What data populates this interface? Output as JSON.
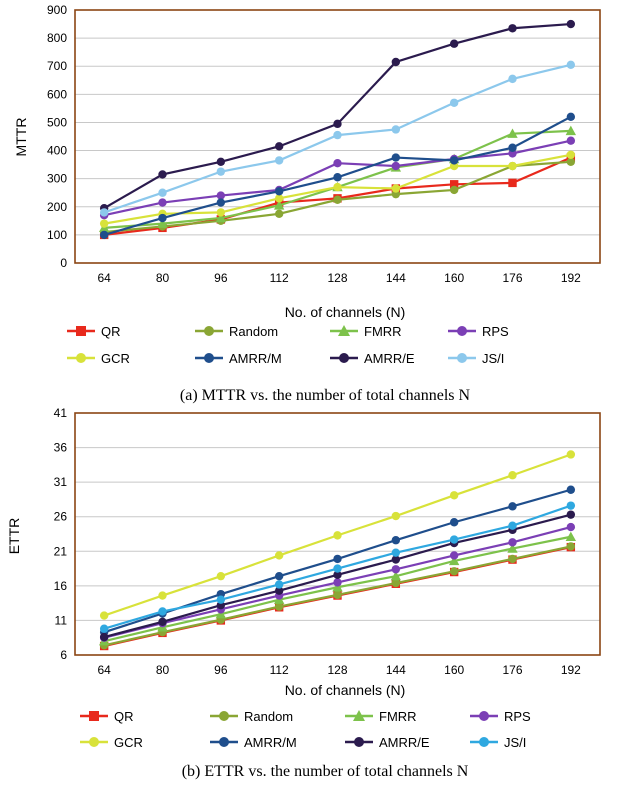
{
  "chart_data": [
    {
      "type": "line",
      "xlabel": "No. of channels (N)",
      "ylabel": "MTTR",
      "caption": "(a) MTTR vs. the number of total channels N",
      "categories": [
        "64",
        "80",
        "96",
        "112",
        "128",
        "144",
        "160",
        "176",
        "192"
      ],
      "ylim": [
        0,
        900
      ],
      "yticks": [
        0,
        100,
        200,
        300,
        400,
        500,
        600,
        700,
        800,
        900
      ],
      "series": [
        {
          "name": "QR",
          "color": "#e8291c",
          "marker": "square",
          "values": [
            100,
            125,
            155,
            215,
            230,
            265,
            280,
            285,
            375
          ]
        },
        {
          "name": "Random",
          "color": "#8aa634",
          "marker": "circle",
          "values": [
            110,
            130,
            150,
            175,
            225,
            245,
            260,
            345,
            360
          ]
        },
        {
          "name": "FMRR",
          "color": "#7dc24b",
          "marker": "triangle",
          "values": [
            125,
            140,
            160,
            205,
            270,
            340,
            370,
            460,
            470
          ]
        },
        {
          "name": "RPS",
          "color": "#7b3fb5",
          "marker": "circle",
          "values": [
            170,
            215,
            240,
            260,
            355,
            345,
            370,
            390,
            435
          ]
        },
        {
          "name": "GCR",
          "color": "#d8e23a",
          "marker": "circle",
          "values": [
            140,
            175,
            180,
            230,
            270,
            265,
            345,
            345,
            385
          ]
        },
        {
          "name": "AMRR/M",
          "color": "#1f4e8c",
          "marker": "circle",
          "values": [
            100,
            160,
            215,
            255,
            305,
            375,
            365,
            410,
            520
          ]
        },
        {
          "name": "AMRR/E",
          "color": "#2b1b4e",
          "marker": "circle",
          "values": [
            195,
            315,
            360,
            415,
            495,
            715,
            780,
            835,
            850
          ]
        },
        {
          "name": "JS/I",
          "color": "#8cc8ec",
          "marker": "circle",
          "values": [
            180,
            250,
            325,
            365,
            455,
            475,
            570,
            655,
            705
          ]
        }
      ]
    },
    {
      "type": "line",
      "xlabel": "No. of channels (N)",
      "ylabel": "ETTR",
      "caption": "(b) ETTR vs. the number of total channels N",
      "categories": [
        "64",
        "80",
        "96",
        "112",
        "128",
        "144",
        "160",
        "176",
        "192"
      ],
      "ylim": [
        6,
        41
      ],
      "yticks": [
        6,
        11,
        16,
        21,
        26,
        31,
        36,
        41
      ],
      "series": [
        {
          "name": "QR",
          "color": "#e8291c",
          "marker": "square",
          "values": [
            7.3,
            9.2,
            11,
            12.9,
            14.6,
            16.3,
            18,
            19.8,
            21.6
          ]
        },
        {
          "name": "Random",
          "color": "#8aa634",
          "marker": "circle",
          "values": [
            7.4,
            9.3,
            11.1,
            13,
            14.7,
            16.4,
            18.1,
            19.9,
            21.7
          ]
        },
        {
          "name": "FMRR",
          "color": "#7dc24b",
          "marker": "triangle",
          "values": [
            8,
            10,
            11.9,
            14,
            15.8,
            17.4,
            19.6,
            21.4,
            23.1
          ]
        },
        {
          "name": "RPS",
          "color": "#7b3fb5",
          "marker": "circle",
          "values": [
            8.5,
            10.6,
            12.6,
            14.6,
            16.5,
            18.4,
            20.4,
            22.3,
            24.5
          ]
        },
        {
          "name": "GCR",
          "color": "#d8e23a",
          "marker": "circle",
          "values": [
            11.7,
            14.6,
            17.4,
            20.4,
            23.3,
            26.1,
            29.1,
            32,
            35
          ]
        },
        {
          "name": "AMRR/M",
          "color": "#1f4e8c",
          "marker": "circle",
          "values": [
            9.3,
            12,
            14.8,
            17.4,
            19.9,
            22.6,
            25.2,
            27.5,
            29.9
          ]
        },
        {
          "name": "AMRR/E",
          "color": "#2b1b4e",
          "marker": "circle",
          "values": [
            8.6,
            10.8,
            13.2,
            15.3,
            17.6,
            19.8,
            22.2,
            24.1,
            26.3
          ]
        },
        {
          "name": "JS/I",
          "color": "#2fa8e0",
          "marker": "circle",
          "values": [
            9.8,
            12.3,
            14,
            16.2,
            18.5,
            20.8,
            22.7,
            24.7,
            27.6
          ]
        }
      ]
    }
  ]
}
